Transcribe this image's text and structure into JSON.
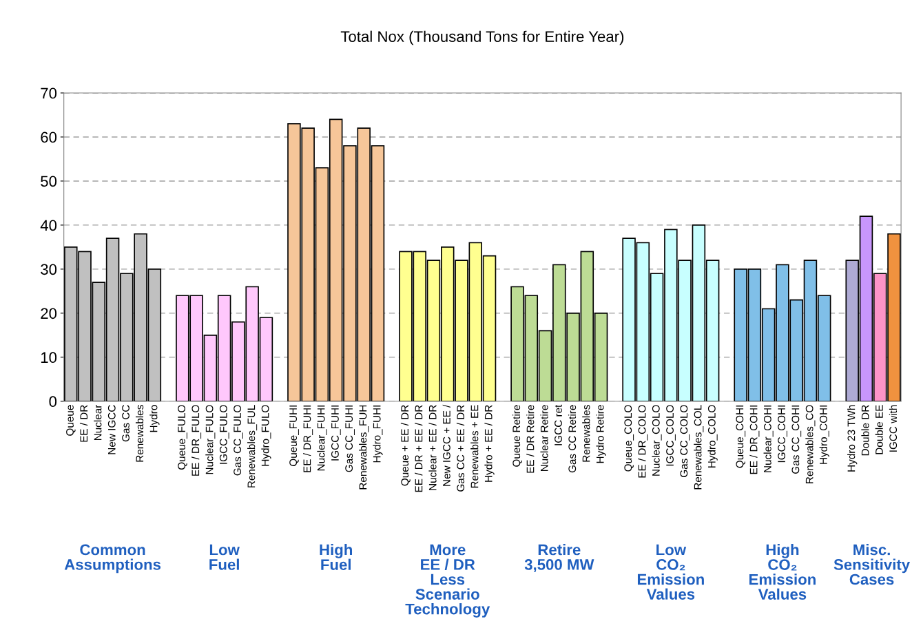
{
  "chart_data": {
    "type": "bar",
    "title": "Total Nox (Thousand Tons for Entire Year)",
    "categories": [
      "Queue",
      "EE / DR",
      "Nuclear",
      "New IGCC",
      "Gas CC",
      "Renewables",
      "Hydro",
      null,
      "Queue_FULO",
      "EE / DR_FULO",
      "Nuclear_FULO",
      "IGCC_FULO",
      "Gas CC_FULO",
      "Renewables_FUL",
      "Hydro_FULO",
      null,
      "Queue_FUHI",
      "EE / DR_FUHI",
      "Nuclear_FUHI",
      "IGCC_FUHI",
      "Gas CC_FUHI",
      "Renewables_FUH",
      "Hydro_FUHI",
      null,
      "Queue + EE / DR",
      "EE / DR + EE / DR",
      "Nuclear + EE / DR",
      "New IGCC + EE /",
      "Gas CC + EE / DR",
      "Renewables + EE",
      "Hydro + EE / DR",
      null,
      "Queue Retire",
      "EE / DR Retire",
      "Nuclear Retire",
      "IGCC ret",
      "Gas CC Retire",
      "Renewables",
      "Hydro Retire",
      null,
      "Queue_COLO",
      "EE / DR_COLO",
      "Nuclear_COLO",
      "IGCC_COLO",
      "Gas CC_COLO",
      "Renewables_COL",
      "Hydro_COLO",
      null,
      "Queue_COHI",
      "EE / DR_COHI",
      "Nuclear_COHI",
      "IGCC_COHI",
      "Gas CC_COHI",
      "Renewables_CO",
      "Hydro_COHI",
      null,
      "Hydro 23 TWh",
      "Double DR",
      "Double EE",
      "IGCC with"
    ],
    "values": [
      35,
      34,
      27,
      37,
      29,
      38,
      30,
      null,
      24,
      24,
      15,
      24,
      18,
      26,
      19,
      null,
      63,
      62,
      53,
      64,
      58,
      62,
      58,
      null,
      34,
      34,
      32,
      35,
      32,
      36,
      33,
      null,
      26,
      24,
      16,
      31,
      20,
      34,
      20,
      null,
      37,
      36,
      29,
      39,
      32,
      40,
      32,
      null,
      30,
      30,
      21,
      31,
      23,
      32,
      24,
      null,
      32,
      42,
      29,
      38
    ],
    "colors": [
      "#c0c0c0",
      "#c0c0c0",
      "#c0c0c0",
      "#c0c0c0",
      "#c0c0c0",
      "#c0c0c0",
      "#c0c0c0",
      "#ffffff",
      "#ffc8fc",
      "#ffc8fc",
      "#ffc8fc",
      "#ffc8fc",
      "#ffc8fc",
      "#ffc8fc",
      "#ffc8fc",
      "#ffffff",
      "#f6c699",
      "#f6c699",
      "#f6c699",
      "#f6c699",
      "#f6c699",
      "#f6c699",
      "#f6c699",
      "#ffffff",
      "#ffff90",
      "#ffff90",
      "#ffff90",
      "#ffff90",
      "#ffff90",
      "#ffff90",
      "#ffff90",
      "#ffffff",
      "#bddc95",
      "#bddc95",
      "#bddc95",
      "#bddc95",
      "#bddc95",
      "#bddc95",
      "#bddc95",
      "#ffffff",
      "#c8ffff",
      "#c8ffff",
      "#c8ffff",
      "#c8ffff",
      "#c8ffff",
      "#c8ffff",
      "#c8ffff",
      "#ffffff",
      "#80bfe8",
      "#80bfe8",
      "#80bfe8",
      "#80bfe8",
      "#80bfe8",
      "#80bfe8",
      "#80bfe8",
      "#ffffff",
      "#aeaad4",
      "#c896fc",
      "#fc94c8",
      "#f0923f"
    ],
    "ylim": [
      0,
      70
    ],
    "yticks": [
      0,
      10,
      20,
      30,
      40,
      50,
      60,
      70
    ],
    "grid": "y",
    "annotations": [
      "Common\nAssumptions",
      "Low\nFuel",
      "High\nFuel",
      "More\nEE / DR\nLess\nScenario\nTechnology",
      "Retire\n3,500 MW",
      "Low\nCO₂\nEmission\nValues",
      "High\nCO₂\nEmission\nValues",
      "Misc.\nSensitivity\nCases"
    ]
  }
}
